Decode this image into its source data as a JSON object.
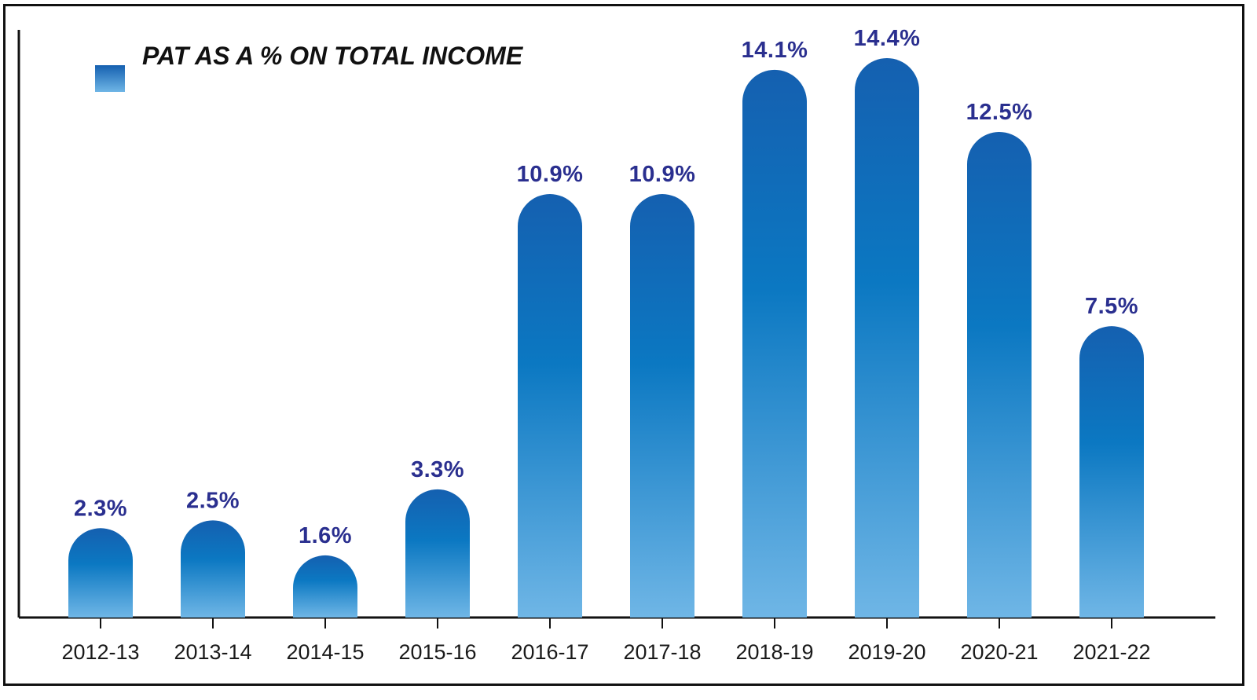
{
  "chart_data": {
    "type": "bar",
    "categories": [
      "2012-13",
      "2013-14",
      "2014-15",
      "2015-16",
      "2016-17",
      "2017-18",
      "2018-19",
      "2019-20",
      "2020-21",
      "2021-22"
    ],
    "series": [
      {
        "name": "PAT AS A % ON TOTAL INCOME",
        "values": [
          2.3,
          2.5,
          1.6,
          3.3,
          10.9,
          10.9,
          14.1,
          14.4,
          12.5,
          7.5
        ]
      }
    ],
    "data_labels": [
      "2.3%",
      "2.5%",
      "1.6%",
      "3.3%",
      "10.9%",
      "10.9%",
      "14.1%",
      "14.4%",
      "12.5%",
      "7.5%"
    ],
    "ylim": [
      0,
      14.4
    ],
    "grid": false,
    "legend_position": "top-left",
    "colors": {
      "bar_top": "#1560b0",
      "bar_mid": "#0b78c2",
      "bar_bottom": "#6fb6e6",
      "value_label": "#2a2f8f",
      "axis": "#111111"
    }
  }
}
